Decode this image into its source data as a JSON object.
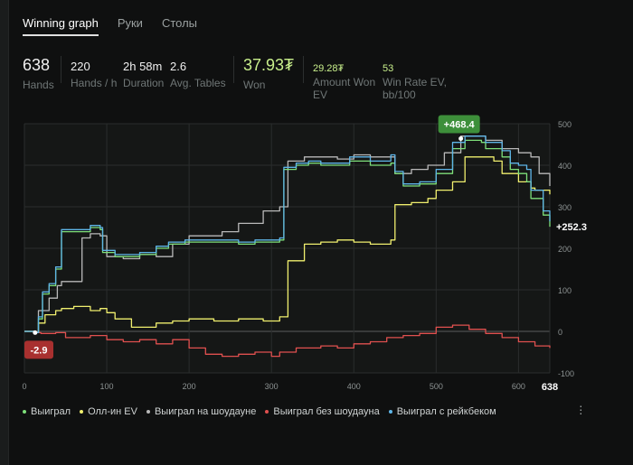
{
  "tabs": [
    {
      "label": "Winning graph",
      "active": true
    },
    {
      "label": "Руки",
      "active": false
    },
    {
      "label": "Столы",
      "active": false
    }
  ],
  "stats": {
    "hands": {
      "value": "638",
      "label": "Hands"
    },
    "hands_per_hour": {
      "value": "220",
      "label": "Hands / h"
    },
    "duration": {
      "value": "2h 58m",
      "label": "Duration"
    },
    "avg_tables": {
      "value": "2.6",
      "label": "Avg. Tables"
    },
    "won": {
      "value": "37.93₮",
      "label": "Won"
    },
    "amount_won_ev": {
      "value": "29.28₮",
      "label_1": "Amount Won",
      "label_2": "EV"
    },
    "win_rate_ev": {
      "value": "53",
      "label_1": "Win Rate EV,",
      "label_2": "bb/100"
    }
  },
  "colors": {
    "won": "#7ee07a",
    "allin_ev": "#f0ef6e",
    "showdown": "#b9b9b9",
    "non_showdown": "#e0504f",
    "rakeback": "#5fb6e8",
    "peak_badge": "#3d8f3a",
    "low_badge": "#a8302f"
  },
  "legend": [
    {
      "label": "Выиграл",
      "color_key": "won"
    },
    {
      "label": "Олл-ин EV",
      "color_key": "allin_ev"
    },
    {
      "label": "Выиграл на шоудауне",
      "color_key": "showdown"
    },
    {
      "label": "Выиграл без шоудауна",
      "color_key": "non_showdown"
    },
    {
      "label": "Выиграл с рейкбеком",
      "color_key": "rakeback"
    }
  ],
  "chart_data": {
    "type": "line",
    "x_ticks": [
      0,
      100,
      200,
      300,
      400,
      500,
      600
    ],
    "x_end_label": "638",
    "y_ticks": [
      -100,
      0,
      100,
      200,
      300,
      400,
      500
    ],
    "xlim": [
      0,
      638
    ],
    "ylim": [
      -100,
      500
    ],
    "grid": true,
    "annotations": {
      "peak": {
        "label": "+468.4",
        "x": 530,
        "y": 468.4
      },
      "low": {
        "label": "-2.9",
        "x": 13,
        "y": -2.9
      },
      "end": {
        "label": "+252.3",
        "x": 638,
        "y": 252.3
      }
    },
    "series": [
      {
        "name": "Выиграл",
        "color_key": "won",
        "points": [
          [
            0,
            0
          ],
          [
            13,
            -3
          ],
          [
            17,
            30
          ],
          [
            22,
            90
          ],
          [
            30,
            110
          ],
          [
            38,
            150
          ],
          [
            45,
            240
          ],
          [
            80,
            250
          ],
          [
            92,
            245
          ],
          [
            95,
            190
          ],
          [
            110,
            180
          ],
          [
            140,
            185
          ],
          [
            160,
            200
          ],
          [
            175,
            210
          ],
          [
            195,
            215
          ],
          [
            200,
            215
          ],
          [
            230,
            215
          ],
          [
            260,
            210
          ],
          [
            280,
            215
          ],
          [
            310,
            220
          ],
          [
            315,
            390
          ],
          [
            330,
            400
          ],
          [
            345,
            405
          ],
          [
            360,
            400
          ],
          [
            380,
            400
          ],
          [
            395,
            410
          ],
          [
            420,
            400
          ],
          [
            445,
            405
          ],
          [
            450,
            380
          ],
          [
            460,
            350
          ],
          [
            480,
            355
          ],
          [
            500,
            380
          ],
          [
            520,
            440
          ],
          [
            535,
            460
          ],
          [
            555,
            455
          ],
          [
            560,
            440
          ],
          [
            580,
            420
          ],
          [
            590,
            390
          ],
          [
            600,
            380
          ],
          [
            610,
            360
          ],
          [
            615,
            320
          ],
          [
            630,
            280
          ],
          [
            638,
            252
          ]
        ]
      },
      {
        "name": "Олл-ин EV",
        "color_key": "allin_ev",
        "points": [
          [
            0,
            0
          ],
          [
            13,
            -3
          ],
          [
            17,
            20
          ],
          [
            25,
            40
          ],
          [
            38,
            50
          ],
          [
            45,
            55
          ],
          [
            60,
            60
          ],
          [
            80,
            50
          ],
          [
            92,
            55
          ],
          [
            100,
            45
          ],
          [
            110,
            30
          ],
          [
            130,
            10
          ],
          [
            160,
            20
          ],
          [
            180,
            25
          ],
          [
            200,
            30
          ],
          [
            230,
            25
          ],
          [
            260,
            30
          ],
          [
            290,
            25
          ],
          [
            310,
            35
          ],
          [
            320,
            170
          ],
          [
            340,
            210
          ],
          [
            360,
            215
          ],
          [
            380,
            220
          ],
          [
            400,
            215
          ],
          [
            420,
            210
          ],
          [
            445,
            220
          ],
          [
            450,
            305
          ],
          [
            470,
            310
          ],
          [
            490,
            320
          ],
          [
            500,
            340
          ],
          [
            520,
            360
          ],
          [
            535,
            420
          ],
          [
            555,
            420
          ],
          [
            570,
            410
          ],
          [
            580,
            380
          ],
          [
            600,
            360
          ],
          [
            615,
            345
          ],
          [
            620,
            340
          ],
          [
            638,
            330
          ]
        ]
      },
      {
        "name": "Выиграл на шоудауне",
        "color_key": "showdown",
        "points": [
          [
            0,
            0
          ],
          [
            13,
            -3
          ],
          [
            17,
            50
          ],
          [
            30,
            80
          ],
          [
            40,
            110
          ],
          [
            45,
            120
          ],
          [
            70,
            225
          ],
          [
            80,
            235
          ],
          [
            92,
            230
          ],
          [
            100,
            180
          ],
          [
            120,
            175
          ],
          [
            140,
            185
          ],
          [
            160,
            180
          ],
          [
            180,
            210
          ],
          [
            200,
            230
          ],
          [
            240,
            240
          ],
          [
            260,
            260
          ],
          [
            290,
            290
          ],
          [
            310,
            300
          ],
          [
            320,
            410
          ],
          [
            340,
            420
          ],
          [
            360,
            420
          ],
          [
            380,
            415
          ],
          [
            400,
            425
          ],
          [
            420,
            420
          ],
          [
            445,
            420
          ],
          [
            450,
            380
          ],
          [
            470,
            390
          ],
          [
            490,
            400
          ],
          [
            510,
            430
          ],
          [
            530,
            470
          ],
          [
            560,
            460
          ],
          [
            580,
            440
          ],
          [
            600,
            430
          ],
          [
            615,
            420
          ],
          [
            625,
            380
          ],
          [
            638,
            350
          ]
        ]
      },
      {
        "name": "Выиграл без шоудауна",
        "color_key": "non_showdown",
        "points": [
          [
            0,
            0
          ],
          [
            13,
            -3
          ],
          [
            20,
            -5
          ],
          [
            38,
            -3
          ],
          [
            50,
            -15
          ],
          [
            80,
            -10
          ],
          [
            100,
            -20
          ],
          [
            120,
            -25
          ],
          [
            140,
            -20
          ],
          [
            160,
            -30
          ],
          [
            180,
            -20
          ],
          [
            200,
            -40
          ],
          [
            220,
            -55
          ],
          [
            240,
            -60
          ],
          [
            260,
            -55
          ],
          [
            280,
            -50
          ],
          [
            300,
            -60
          ],
          [
            310,
            -50
          ],
          [
            330,
            -40
          ],
          [
            360,
            -35
          ],
          [
            380,
            -40
          ],
          [
            400,
            -30
          ],
          [
            420,
            -25
          ],
          [
            440,
            -15
          ],
          [
            460,
            -10
          ],
          [
            480,
            -5
          ],
          [
            500,
            10
          ],
          [
            520,
            15
          ],
          [
            540,
            5
          ],
          [
            560,
            -5
          ],
          [
            580,
            -15
          ],
          [
            600,
            -25
          ],
          [
            620,
            -35
          ],
          [
            638,
            -40
          ]
        ]
      },
      {
        "name": "Выиграл с рейкбеком",
        "color_key": "rakeback",
        "points": [
          [
            0,
            0
          ],
          [
            13,
            -3
          ],
          [
            17,
            35
          ],
          [
            22,
            95
          ],
          [
            30,
            115
          ],
          [
            38,
            155
          ],
          [
            45,
            245
          ],
          [
            80,
            255
          ],
          [
            92,
            250
          ],
          [
            95,
            195
          ],
          [
            110,
            185
          ],
          [
            140,
            190
          ],
          [
            160,
            205
          ],
          [
            175,
            215
          ],
          [
            195,
            220
          ],
          [
            200,
            220
          ],
          [
            230,
            220
          ],
          [
            260,
            215
          ],
          [
            280,
            220
          ],
          [
            310,
            225
          ],
          [
            315,
            395
          ],
          [
            330,
            405
          ],
          [
            345,
            410
          ],
          [
            360,
            405
          ],
          [
            380,
            405
          ],
          [
            395,
            420
          ],
          [
            420,
            410
          ],
          [
            445,
            425
          ],
          [
            450,
            385
          ],
          [
            460,
            355
          ],
          [
            480,
            360
          ],
          [
            500,
            390
          ],
          [
            520,
            455
          ],
          [
            535,
            470
          ],
          [
            555,
            470
          ],
          [
            560,
            455
          ],
          [
            580,
            435
          ],
          [
            590,
            405
          ],
          [
            600,
            400
          ],
          [
            610,
            390
          ],
          [
            615,
            340
          ],
          [
            630,
            290
          ],
          [
            638,
            265
          ]
        ]
      }
    ]
  }
}
